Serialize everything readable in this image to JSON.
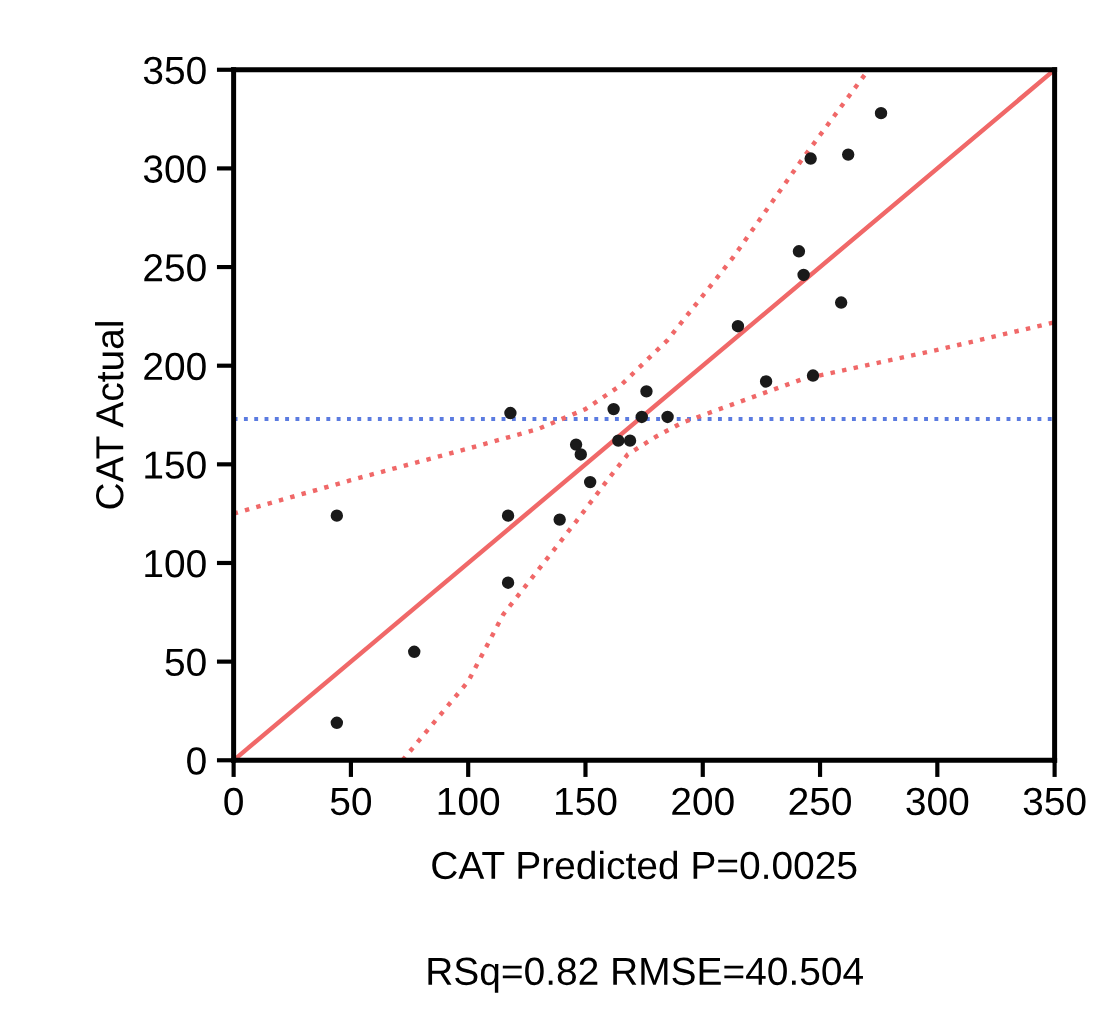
{
  "chart_data": {
    "type": "scatter",
    "xlabel": "CAT Predicted P=0.0025",
    "ylabel": "CAT Actual",
    "annotations": [
      "RSq=0.82 RMSE=40.504"
    ],
    "xlim": [
      0,
      350
    ],
    "ylim": [
      0,
      350
    ],
    "xticks": [
      0,
      50,
      100,
      150,
      200,
      250,
      300,
      350
    ],
    "yticks": [
      0,
      50,
      100,
      150,
      200,
      250,
      300,
      350
    ],
    "grid": false,
    "legend": false,
    "ref_lines": [
      {
        "axis": "y",
        "value": 173,
        "color": "#5b7be0",
        "line_style": "dotted"
      }
    ],
    "series": [
      {
        "color": "#1a1a1a",
        "marker": "circle",
        "x": [
          44,
          44,
          77,
          118,
          117,
          117,
          139,
          146,
          148,
          152,
          162,
          164,
          169,
          174,
          176,
          185,
          215,
          227,
          241,
          243,
          246,
          247,
          259,
          262,
          276
        ],
        "values": [
          124,
          19,
          55,
          176,
          124,
          90,
          122,
          160,
          155,
          141,
          178,
          162,
          162,
          174,
          187,
          174,
          220,
          192,
          258,
          246,
          305,
          195,
          232,
          307,
          328
        ]
      },
      {
        "type": "line",
        "color": "#f06868",
        "line_style": "solid",
        "marker": "none",
        "x": [
          0,
          350
        ],
        "values": [
          0,
          350
        ]
      },
      {
        "type": "line",
        "color": "#f06868",
        "line_style": "dotted",
        "marker": "none",
        "x": [
          0,
          50,
          100,
          130,
          150,
          165,
          185,
          213,
          242,
          270
        ],
        "values": [
          125,
          142,
          158,
          168,
          178,
          190,
          213,
          255,
          304,
          349
        ]
      },
      {
        "type": "line",
        "color": "#f06868",
        "line_style": "dotted",
        "marker": "none",
        "x": [
          72,
          100,
          115,
          146,
          160,
          168,
          180,
          191,
          242,
          300,
          350
        ],
        "values": [
          0,
          40,
          74,
          121,
          143,
          155,
          164,
          171,
          193,
          208,
          222
        ]
      }
    ]
  }
}
